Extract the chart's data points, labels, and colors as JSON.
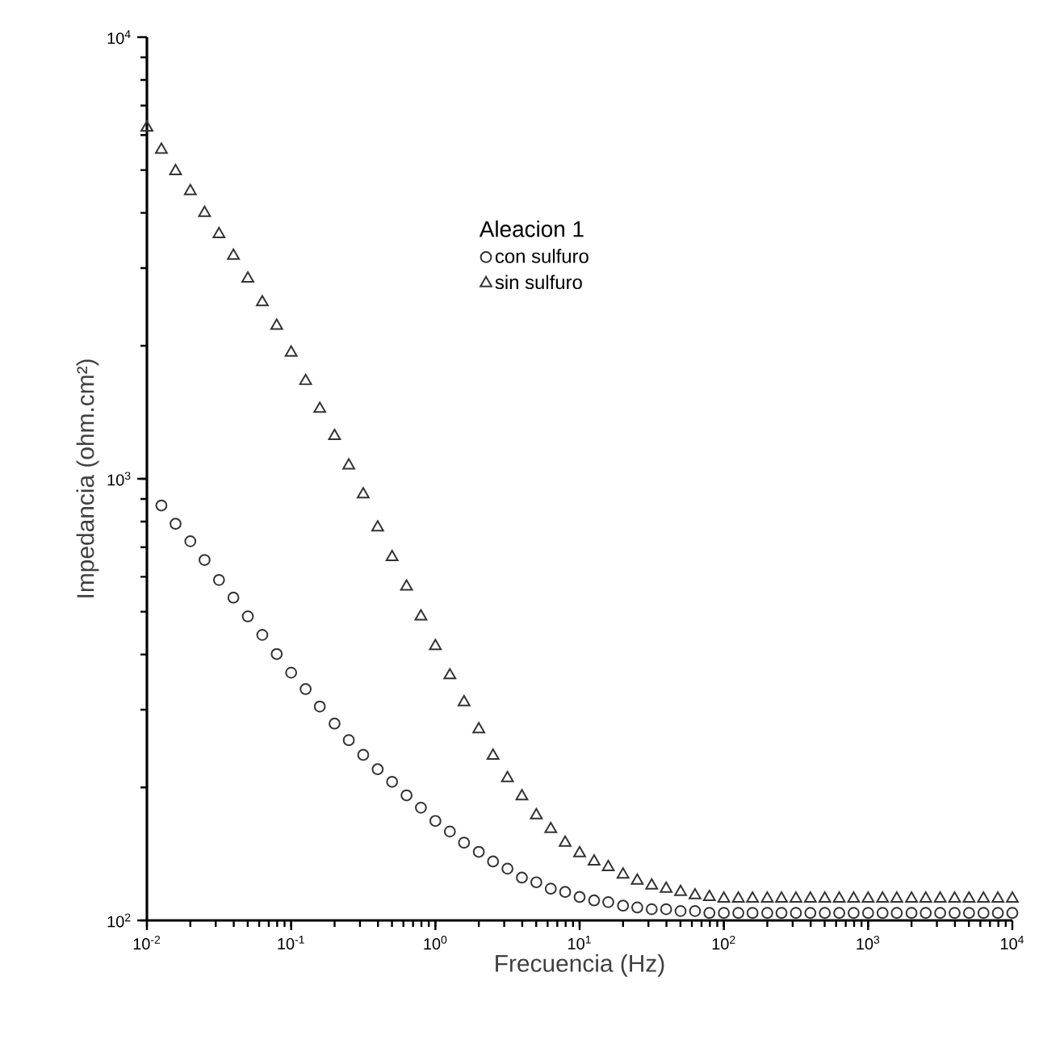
{
  "chart_data": {
    "type": "scatter",
    "xlabel": "Frecuencia (Hz)",
    "ylabel": "Impedancia (ohm.cm²)",
    "legend_title": "Aleacion 1",
    "log": "xy",
    "legend": "top",
    "grid": false,
    "xlim": [
      0.01,
      10000
    ],
    "ylim": [
      100,
      10000
    ],
    "xticks": [
      {
        "value": 0.01,
        "label": "10$^{-2}$"
      },
      {
        "value": 0.1,
        "label": "10$^{-1}$"
      },
      {
        "value": 1,
        "label": "10$^{0}$"
      },
      {
        "value": 10,
        "label": "10$^{1}$"
      },
      {
        "value": 100,
        "label": "10$^{2}$"
      },
      {
        "value": 1000,
        "label": "10$^{3}$"
      },
      {
        "value": 10000,
        "label": "10$^{4}$"
      }
    ],
    "yticks": [
      {
        "value": 100,
        "label": "10$^{2}$"
      },
      {
        "value": 1000,
        "label": "10$^{3}$"
      },
      {
        "value": 10000,
        "label": "10$^{4}$"
      }
    ],
    "series": [
      {
        "name": "con sulfuro",
        "color": "#333333",
        "marker": "circle",
        "x": [
          0.0126,
          0.0158,
          0.02,
          0.0251,
          0.0316,
          0.0398,
          0.0501,
          0.0631,
          0.0794,
          0.1,
          0.126,
          0.158,
          0.2,
          0.251,
          0.316,
          0.398,
          0.501,
          0.631,
          0.794,
          1,
          1.26,
          1.58,
          2,
          2.51,
          3.16,
          3.98,
          5.01,
          6.31,
          7.94,
          10,
          12.6,
          15.8,
          20,
          25.1,
          31.6,
          39.8,
          50.1,
          63.1,
          79.4,
          100,
          126,
          158,
          200,
          251,
          316,
          398,
          501,
          631,
          794,
          1000,
          1260,
          1580,
          2000,
          2510,
          3160,
          3980,
          5010,
          6310,
          7940,
          10000
        ],
        "values": [
          870,
          791,
          722,
          655,
          590,
          538,
          488,
          443,
          401,
          364,
          334,
          305,
          279,
          256,
          237,
          220,
          206,
          192,
          180,
          168,
          159,
          150,
          143,
          136,
          131,
          125,
          122,
          118,
          116,
          113,
          111,
          110,
          108,
          107,
          106,
          106,
          105,
          105,
          104,
          104,
          104,
          104,
          104,
          104,
          104,
          104,
          104,
          104,
          104,
          104,
          104,
          104,
          104,
          104,
          104,
          104,
          104,
          104,
          104,
          104
        ]
      },
      {
        "name": "sin sulfuro",
        "color": "#333333",
        "marker": "triangle",
        "x": [
          0.01,
          0.0126,
          0.0158,
          0.02,
          0.0251,
          0.0316,
          0.0398,
          0.0501,
          0.0631,
          0.0794,
          0.1,
          0.126,
          0.158,
          0.2,
          0.251,
          0.316,
          0.398,
          0.501,
          0.631,
          0.794,
          1,
          1.26,
          1.58,
          2,
          2.51,
          3.16,
          3.98,
          5.01,
          6.31,
          7.94,
          10,
          12.6,
          15.8,
          20,
          25.1,
          31.6,
          39.8,
          50.1,
          63.1,
          79.4,
          100,
          126,
          158,
          200,
          251,
          316,
          398,
          501,
          631,
          794,
          1000,
          1260,
          1580,
          2000,
          2510,
          3160,
          3980,
          5010,
          6310,
          7940,
          10000
        ],
        "values": [
          6240,
          5560,
          4970,
          4480,
          4000,
          3580,
          3200,
          2840,
          2510,
          2220,
          1930,
          1665,
          1440,
          1250,
          1072,
          922,
          776,
          665,
          570,
          488,
          418,
          359,
          312,
          271,
          236,
          210,
          191,
          173,
          161,
          150,
          142,
          136,
          132,
          127,
          123,
          120,
          118,
          116,
          114,
          113,
          112,
          112,
          112,
          112,
          112,
          112,
          112,
          112,
          112,
          112,
          112,
          112,
          112,
          112,
          112,
          112,
          112,
          112,
          112,
          112,
          112
        ]
      }
    ]
  }
}
